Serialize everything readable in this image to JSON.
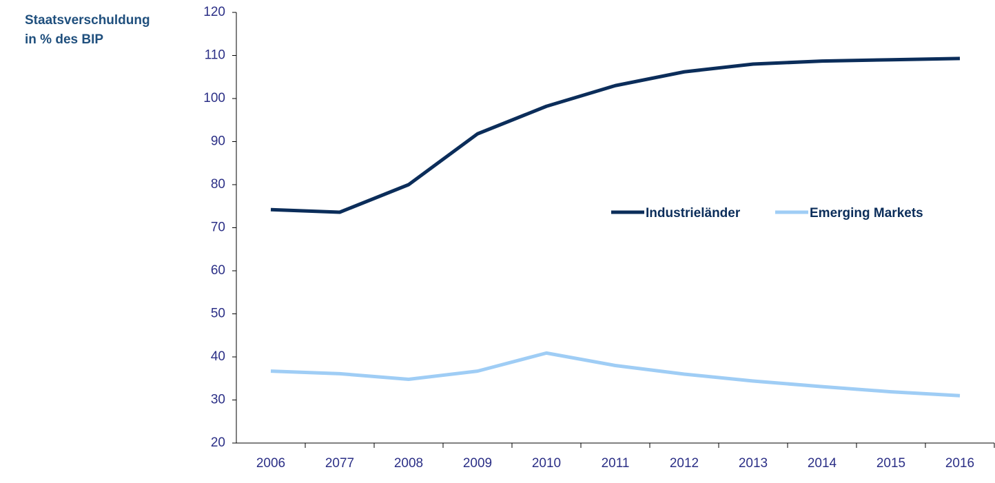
{
  "chart_data": {
    "type": "line",
    "title": "Staatsverschuldung",
    "subtitle": "in % des BIP",
    "categories": [
      "2006",
      "2077",
      "2008",
      "2009",
      "2010",
      "2011",
      "2012",
      "2013",
      "2014",
      "2015",
      "2016"
    ],
    "series": [
      {
        "name": "Industrieländer",
        "color": "#0b2d5a",
        "values": [
          74.2,
          73.6,
          80,
          91.8,
          98.2,
          103,
          106.2,
          108,
          108.7,
          109,
          109.3
        ]
      },
      {
        "name": "Emerging Markets",
        "color": "#9fcdf5",
        "values": [
          36.7,
          36.1,
          34.8,
          36.7,
          40.9,
          38,
          36,
          34.4,
          33.1,
          31.9,
          31
        ]
      }
    ],
    "ylim": [
      20,
      120
    ],
    "yticks": [
      20,
      30,
      40,
      50,
      60,
      70,
      80,
      90,
      100,
      110,
      120
    ],
    "grid": false,
    "legend": "right"
  }
}
